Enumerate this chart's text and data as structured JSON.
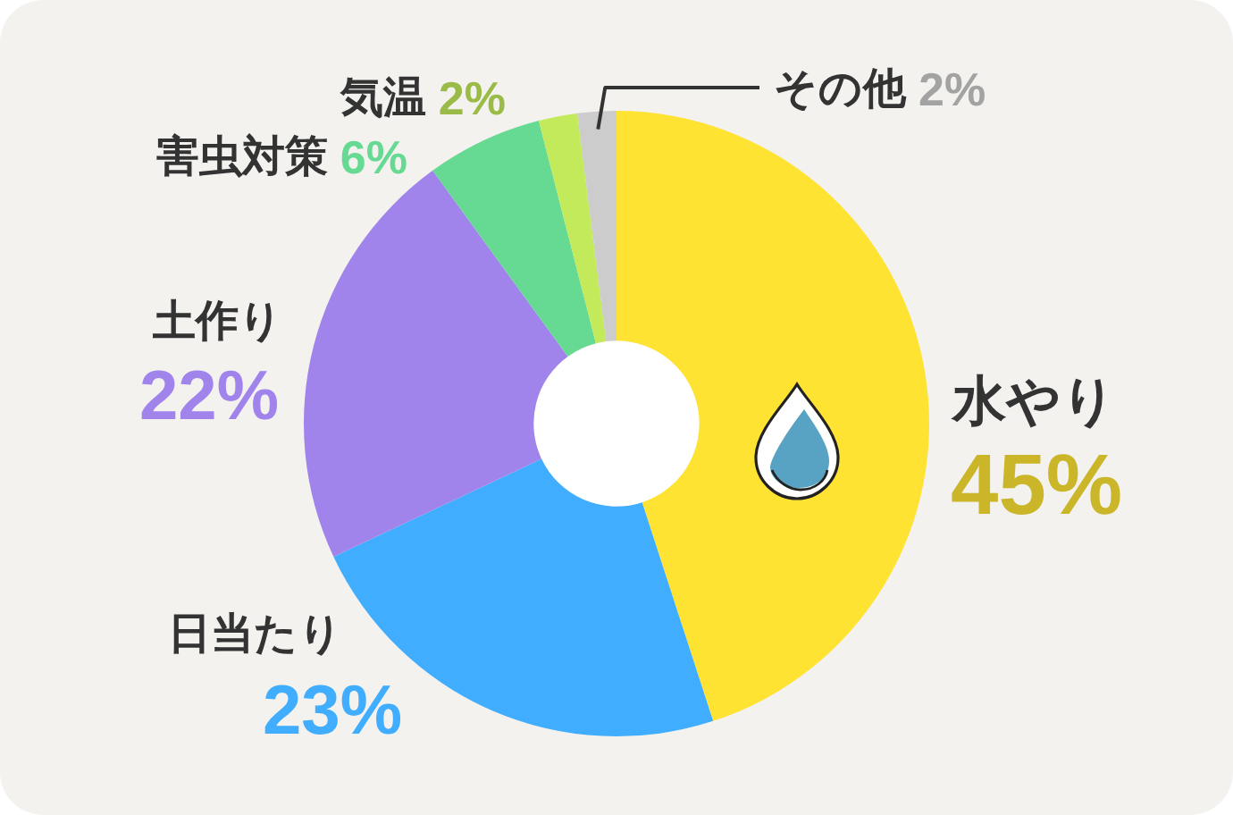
{
  "chart_data": {
    "type": "donut",
    "categories": [
      "水やり",
      "日当たり",
      "土作り",
      "害虫対策",
      "気温",
      "その他"
    ],
    "values": [
      45,
      23,
      22,
      6,
      2,
      2
    ],
    "colors": [
      "#fee333",
      "#40adfe",
      "#a084ec",
      "#66d993",
      "#c2ea5b",
      "#cccccc"
    ],
    "value_labels": [
      "45%",
      "23%",
      "22%",
      "6%",
      "2%",
      "2%"
    ]
  }
}
